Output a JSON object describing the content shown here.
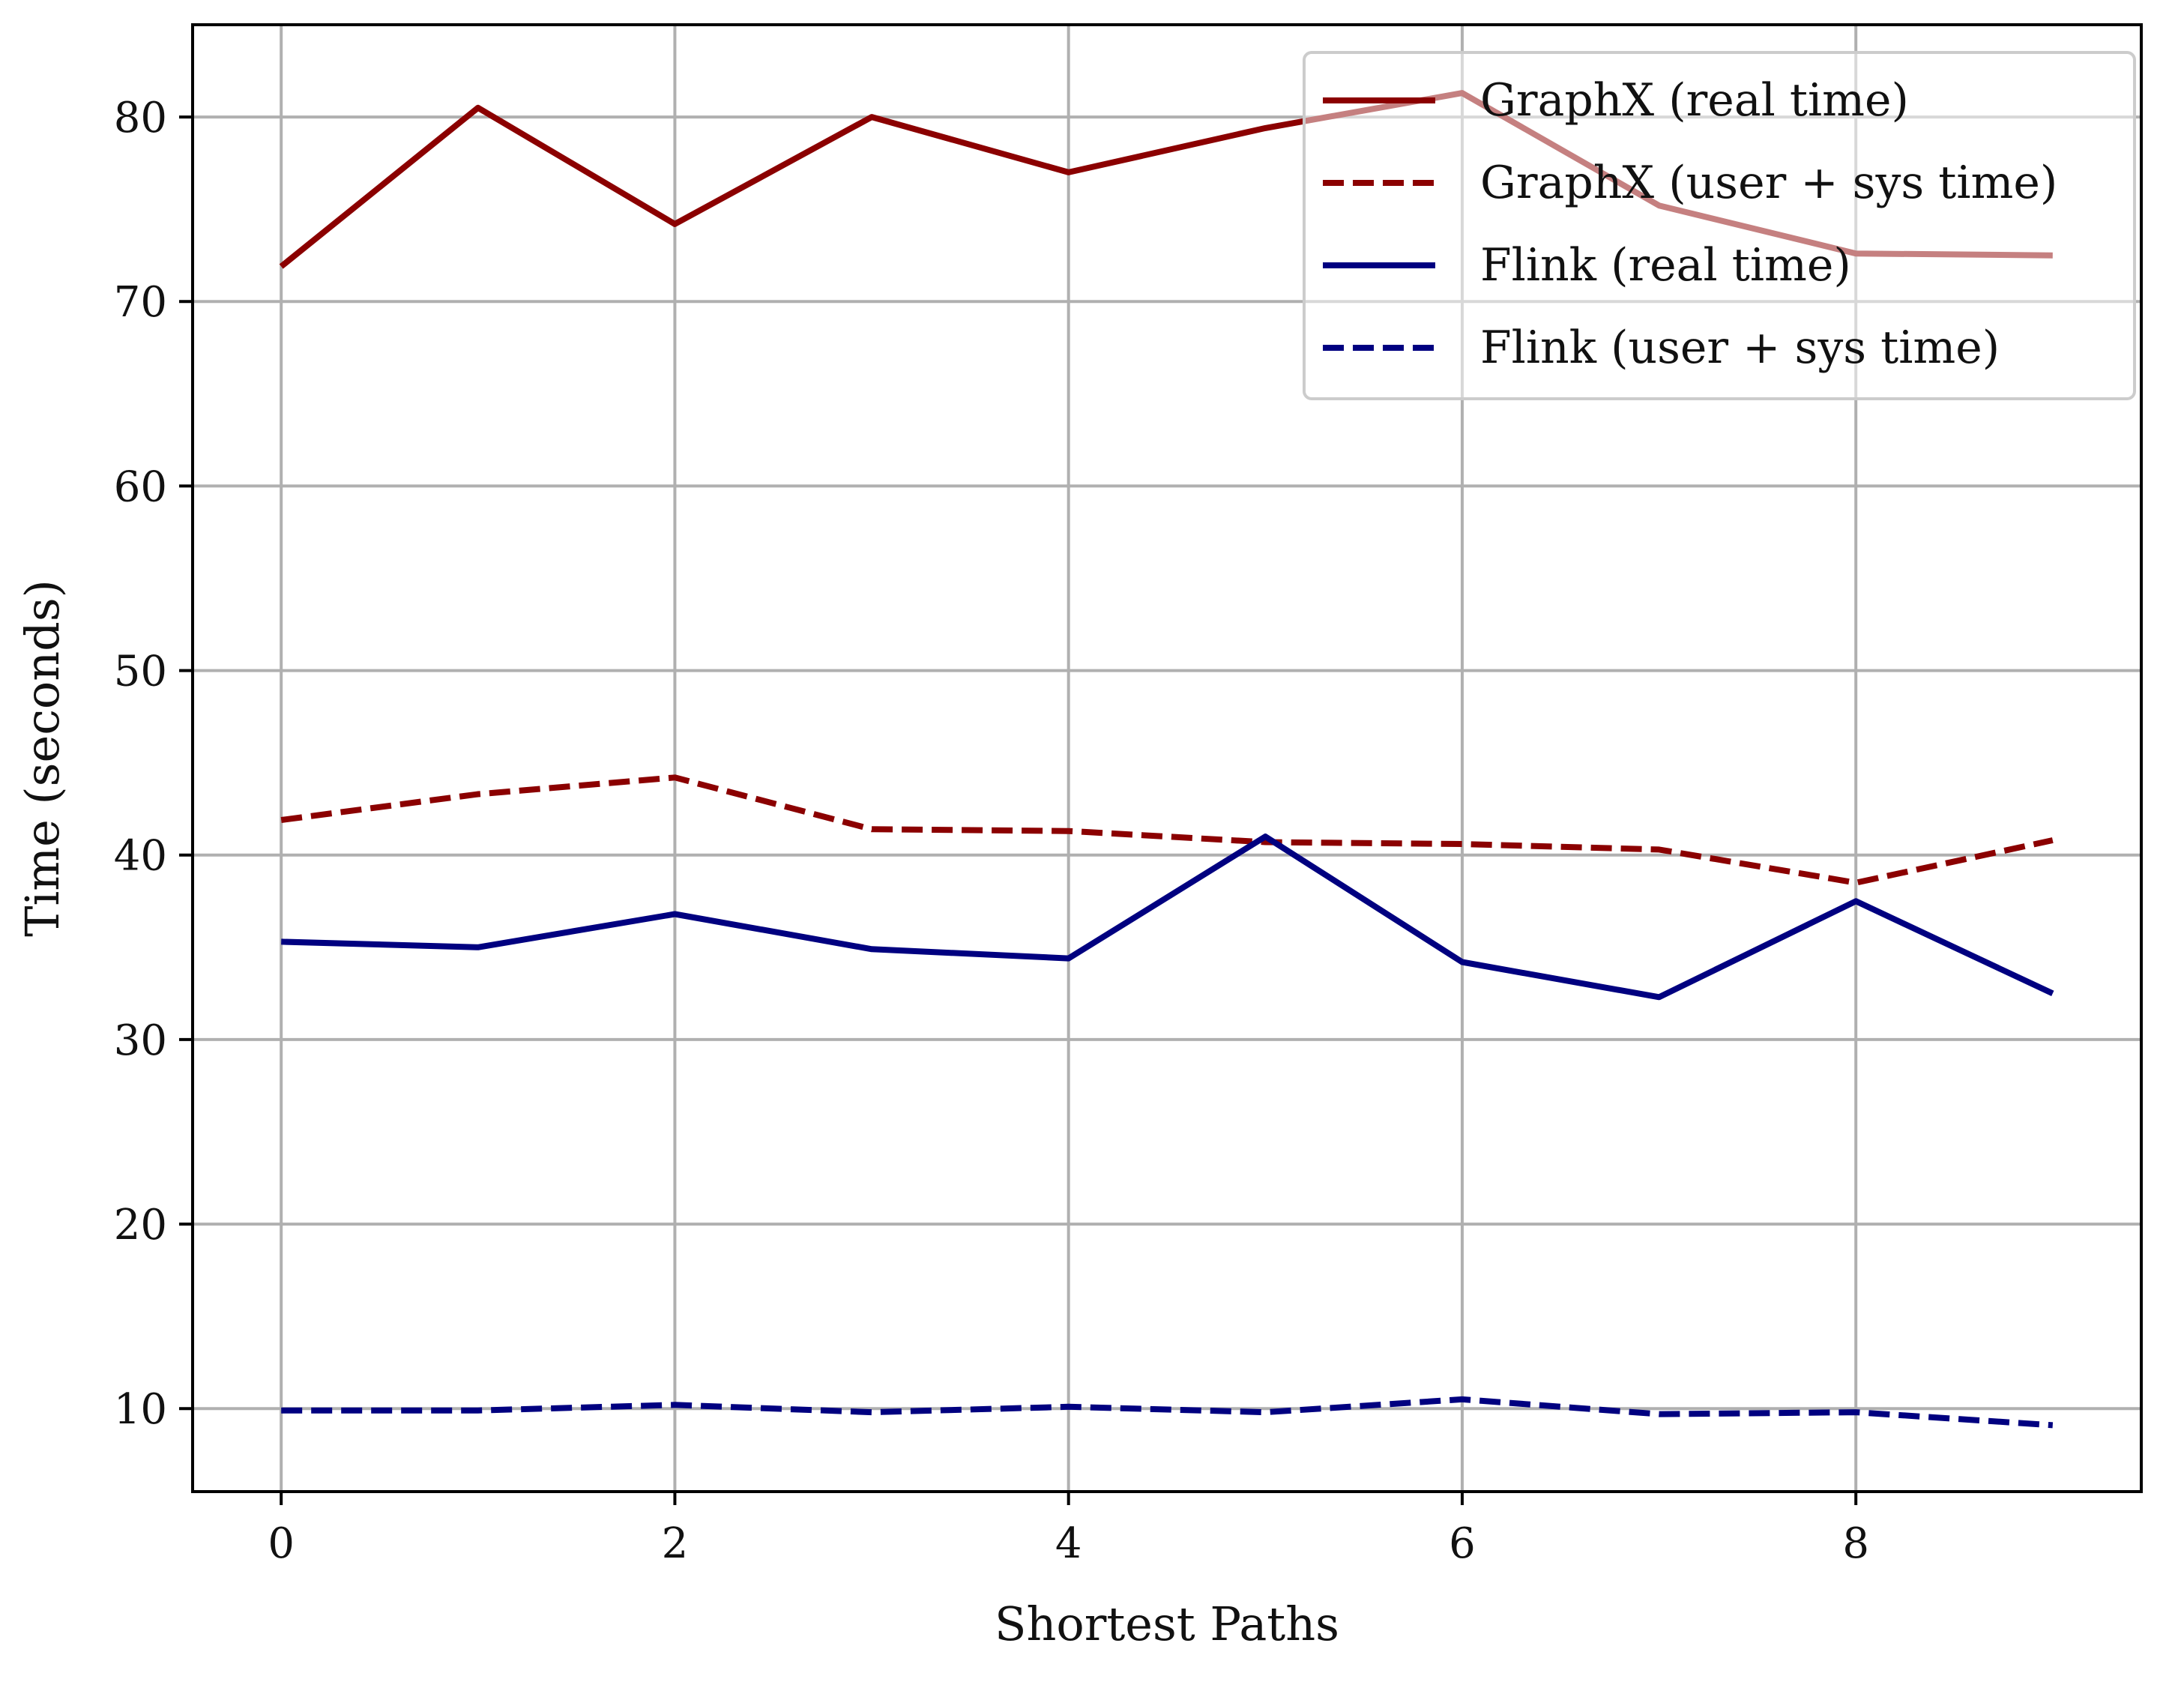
{
  "chart_data": {
    "type": "line",
    "title": "",
    "xlabel": "Shortest Paths",
    "ylabel": "Time (seconds)",
    "xlim": [
      -0.45,
      9.45
    ],
    "ylim": [
      5.5,
      85
    ],
    "xticks": [
      0,
      2,
      4,
      6,
      8
    ],
    "yticks": [
      10,
      20,
      30,
      40,
      50,
      60,
      70,
      80
    ],
    "grid": true,
    "legend_position": "top-right",
    "x": [
      0,
      1,
      2,
      3,
      4,
      5,
      6,
      7,
      8,
      9
    ],
    "series": [
      {
        "name": "GraphX (real time)",
        "color": "#8b0000",
        "dash": "solid",
        "values": [
          71.9,
          80.5,
          74.2,
          80.0,
          77.0,
          79.4,
          81.3,
          75.2,
          72.6,
          72.5
        ]
      },
      {
        "name": "GraphX (user + sys time)",
        "color": "#8b0000",
        "dash": "dashed",
        "values": [
          41.9,
          43.3,
          44.2,
          41.4,
          41.3,
          40.7,
          40.6,
          40.3,
          38.5,
          40.8
        ]
      },
      {
        "name": "Flink (real time)",
        "color": "#000080",
        "dash": "solid",
        "values": [
          35.3,
          35.0,
          36.8,
          34.9,
          34.4,
          41.0,
          34.2,
          32.3,
          37.5,
          32.5
        ]
      },
      {
        "name": "Flink (user + sys time)",
        "color": "#000080",
        "dash": "dashed",
        "values": [
          9.9,
          9.9,
          10.2,
          9.8,
          10.1,
          9.8,
          10.5,
          9.7,
          9.8,
          9.1
        ]
      }
    ]
  }
}
